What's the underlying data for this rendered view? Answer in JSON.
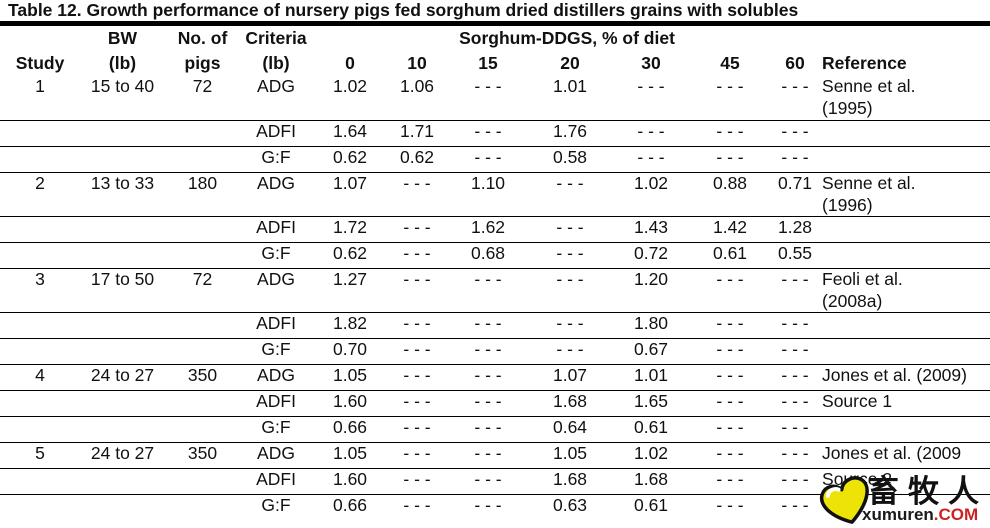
{
  "title": "Table 12. Growth performance of nursery pigs fed sorghum dried distillers grains with solubles",
  "table": {
    "group_header": "Sorghum-DDGS, % of diet",
    "headers_top": {
      "bw": "BW",
      "pigs": "No. of",
      "criteria": "Criteria"
    },
    "headers": {
      "study": "Study",
      "bw_unit": "(lb)",
      "pigs": "pigs",
      "criteria_unit": "(lb)",
      "reference": "Reference"
    },
    "ddgs_levels": [
      "0",
      "10",
      "15",
      "20",
      "30",
      "45",
      "60"
    ],
    "missing_marker": "- - -",
    "rows": [
      {
        "study": "1",
        "bw": "15 to 40",
        "pigs": "72",
        "criteria": "ADG",
        "values": [
          "1.02",
          "1.06",
          "- - -",
          "1.01",
          "- - -",
          "- - -",
          "- - -"
        ],
        "reference": "Senne et al.",
        "reference2": "(1995)",
        "tall": true
      },
      {
        "criteria": "ADFI",
        "values": [
          "1.64",
          "1.71",
          "- - -",
          "1.76",
          "- - -",
          "- - -",
          "- - -"
        ]
      },
      {
        "criteria": "G:F",
        "values": [
          "0.62",
          "0.62",
          "- - -",
          "0.58",
          "- - -",
          "- - -",
          "- - -"
        ]
      },
      {
        "study": "2",
        "bw": "13 to 33",
        "pigs": "180",
        "criteria": "ADG",
        "values": [
          "1.07",
          "- - -",
          "1.10",
          "- - -",
          "1.02",
          "0.88",
          "0.71"
        ],
        "reference": "Senne et al.",
        "reference2": "(1996)",
        "tall": true
      },
      {
        "criteria": "ADFI",
        "values": [
          "1.72",
          "- - -",
          "1.62",
          "- - -",
          "1.43",
          "1.42",
          "1.28"
        ]
      },
      {
        "criteria": "G:F",
        "values": [
          "0.62",
          "- - -",
          "0.68",
          "- - -",
          "0.72",
          "0.61",
          "0.55"
        ]
      },
      {
        "study": "3",
        "bw": "17 to 50",
        "pigs": "72",
        "criteria": "ADG",
        "values": [
          "1.27",
          "- - -",
          "- - -",
          "- - -",
          "1.20",
          "- - -",
          "- - -"
        ],
        "reference": "Feoli et al.",
        "reference2": "(2008a)",
        "tall": true
      },
      {
        "criteria": "ADFI",
        "values": [
          "1.82",
          "- - -",
          "- - -",
          "- - -",
          "1.80",
          "- - -",
          "- - -"
        ]
      },
      {
        "criteria": "G:F",
        "values": [
          "0.70",
          "- - -",
          "- - -",
          "- - -",
          "0.67",
          "- - -",
          "- - -"
        ]
      },
      {
        "study": "4",
        "bw": "24 to 27",
        "pigs": "350",
        "criteria": "ADG",
        "values": [
          "1.05",
          "- - -",
          "- - -",
          "1.07",
          "1.01",
          "- - -",
          "- - -"
        ],
        "reference": "Jones et al. (2009)"
      },
      {
        "criteria": "ADFI",
        "values": [
          "1.60",
          "- - -",
          "- - -",
          "1.68",
          "1.65",
          "- - -",
          "- - -"
        ],
        "reference": "Source 1"
      },
      {
        "criteria": "G:F",
        "values": [
          "0.66",
          "- - -",
          "- - -",
          "0.64",
          "0.61",
          "- - -",
          "- - -"
        ]
      },
      {
        "study": "5",
        "bw": "24 to 27",
        "pigs": "350",
        "criteria": "ADG",
        "values": [
          "1.05",
          "- - -",
          "- - -",
          "1.05",
          "1.02",
          "- - -",
          "- - -"
        ],
        "reference": "Jones et al. (2009"
      },
      {
        "criteria": "ADFI",
        "values": [
          "1.60",
          "- - -",
          "- - -",
          "1.68",
          "1.68",
          "- - -",
          "- - -"
        ],
        "reference": "Source 2"
      },
      {
        "criteria": "G:F",
        "values": [
          "0.66",
          "- - -",
          "- - -",
          "0.63",
          "0.61",
          "- - -",
          "- - -"
        ]
      }
    ]
  },
  "watermark": {
    "chinese_name": "畜牧人",
    "site_name": "xumuren",
    "site_tld": ".COM",
    "colors": {
      "heart_fill": "#ede307",
      "heart_outline": "#111111",
      "tld_red": "#cc2222"
    }
  }
}
